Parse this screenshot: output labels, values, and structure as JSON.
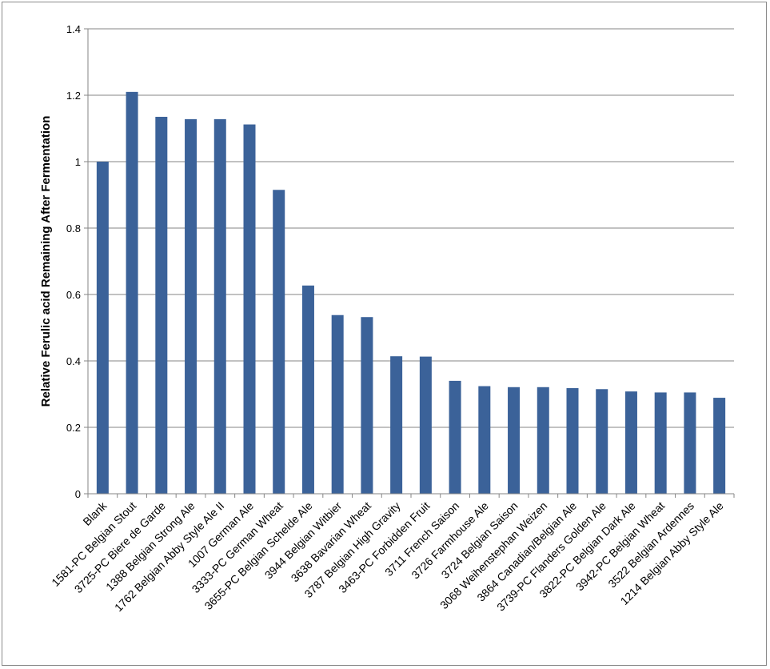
{
  "chart_data": {
    "type": "bar",
    "title": "",
    "xlabel": "",
    "ylabel": "Relative Ferulic acid Remaining After Fermentation",
    "ylim": [
      0,
      1.4
    ],
    "yticks": [
      "0",
      "0.2",
      "0.4",
      "0.6",
      "0.8",
      "1",
      "1.2",
      "1.4"
    ],
    "grid": true,
    "legend": "none",
    "bar_color": "#3b6299",
    "categories": [
      "Blank",
      "1581-PC Belgian Stout",
      "3725-PC Biere de Garde",
      "1388 Belgian Strong Ale",
      "1762 Belgian Abby Style Ale II",
      "1007 German Ale",
      "3333-PC German Wheat",
      "3655-PC Belgian Schelde Ale",
      "3944 Belgian Witbier",
      "3638 Bavarian Wheat",
      "3787 Belgian High Gravity",
      "3463-PC Forbidden Fruit",
      "3711 French Saison",
      "3726 Farmhouse Ale",
      "3724 Belgian Saison",
      "3068 Weihenstephan Weizen",
      "3864 Canadian/Belgian Ale",
      "3739-PC Flanders Golden Ale",
      "3822-PC Belgian Dark Ale",
      "3942-PC Belgian Wheat",
      "3522 Belgian Ardennes",
      "1214 Belgian Abby Style Ale"
    ],
    "values": [
      1.0,
      1.21,
      1.135,
      1.128,
      1.128,
      1.112,
      0.915,
      0.627,
      0.538,
      0.532,
      0.414,
      0.413,
      0.34,
      0.324,
      0.321,
      0.321,
      0.318,
      0.315,
      0.308,
      0.305,
      0.305,
      0.289
    ]
  }
}
